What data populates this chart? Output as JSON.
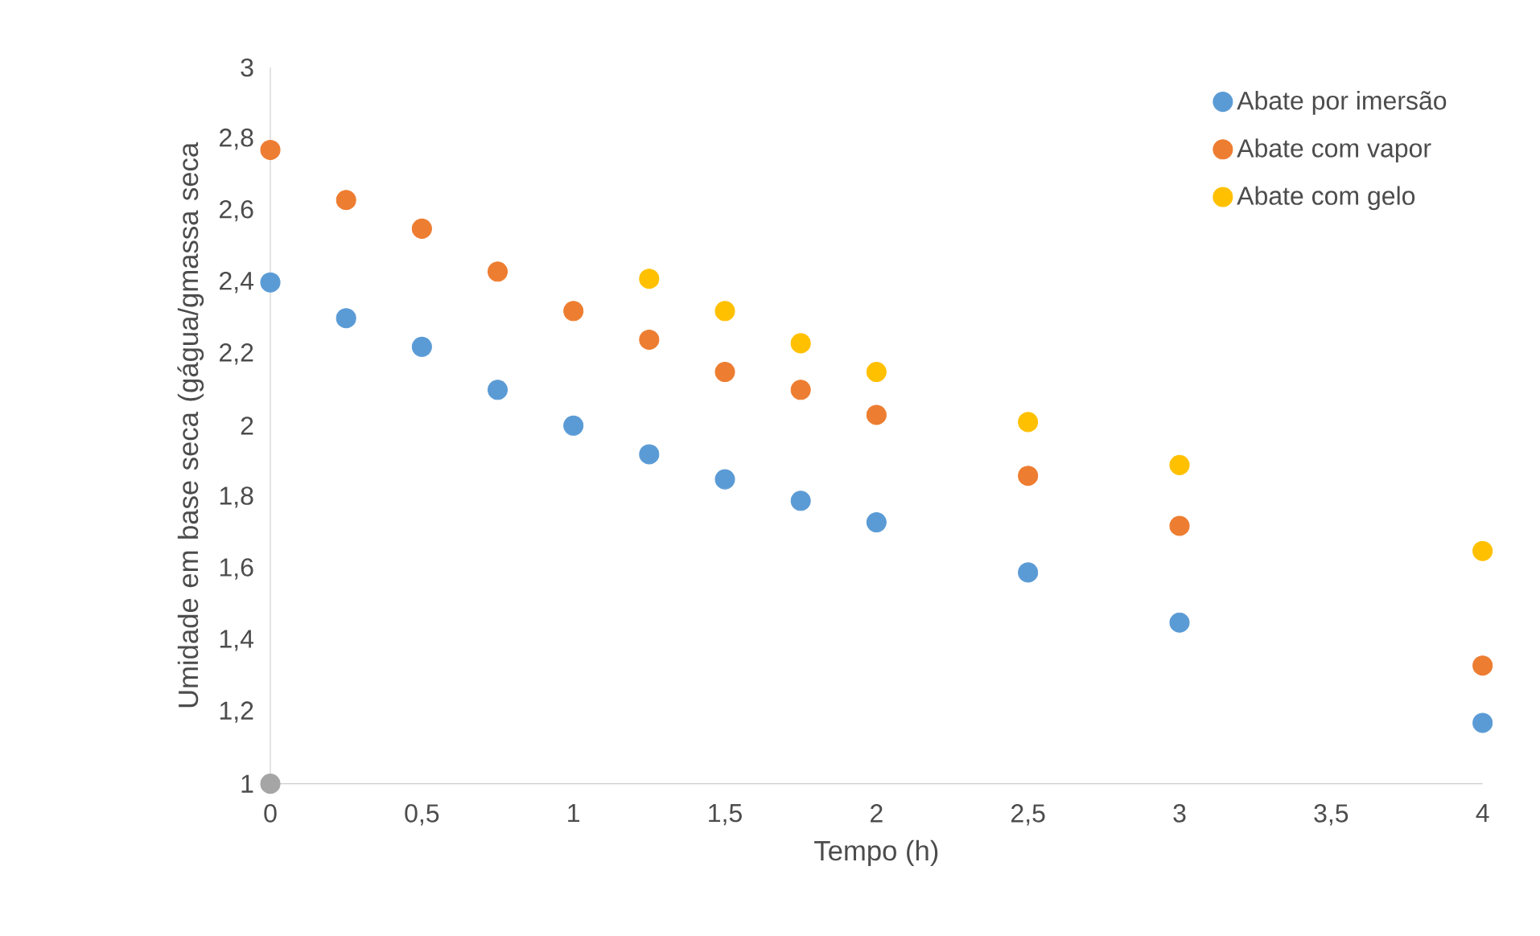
{
  "chart_data": {
    "type": "scatter",
    "xlabel": "Tempo (h)",
    "ylabel": "Umidade em base seca (gágua/gmassa seca",
    "x": [
      0,
      0.25,
      0.5,
      0.75,
      1,
      1.25,
      1.5,
      1.75,
      2,
      2.5,
      3,
      4
    ],
    "series": [
      {
        "name": "Abate por imersão",
        "color": "#5b9bd5",
        "values": [
          2.4,
          2.3,
          2.22,
          2.1,
          2.0,
          1.92,
          1.85,
          1.79,
          1.73,
          1.59,
          1.45,
          1.17
        ]
      },
      {
        "name": "Abate com vapor",
        "color": "#ed7d31",
        "values": [
          2.77,
          2.63,
          2.55,
          2.43,
          2.32,
          2.24,
          2.15,
          2.1,
          2.03,
          1.86,
          1.72,
          1.33
        ]
      },
      {
        "name": "Abate com gelo",
        "color": "#ffc000",
        "x": [
          1.25,
          1.5,
          1.75,
          2,
          2.5,
          3,
          4
        ],
        "values": [
          2.41,
          2.32,
          2.23,
          2.15,
          2.01,
          1.89,
          1.65
        ]
      },
      {
        "color": "#a5a5a5",
        "x": [
          0
        ],
        "values": [
          1
        ]
      }
    ],
    "xlim": [
      0,
      4
    ],
    "ylim": [
      1,
      3
    ],
    "xticks": [
      0,
      {
        "value": 0.5,
        "label": "0,5"
      },
      1,
      {
        "value": 1.5,
        "label": "1,5"
      },
      2,
      {
        "value": 2.5,
        "label": "2,5"
      },
      3,
      {
        "value": 3.5,
        "label": "3,5"
      },
      4
    ],
    "yticks": [
      1,
      {
        "value": 1.2,
        "label": "1,2"
      },
      {
        "value": 1.4,
        "label": "1,4"
      },
      {
        "value": 1.6,
        "label": "1,6"
      },
      {
        "value": 1.8,
        "label": "1,8"
      },
      2,
      {
        "value": 2.2,
        "label": "2,2"
      },
      {
        "value": 2.4,
        "label": "2,4"
      },
      {
        "value": 2.6,
        "label": "2,6"
      },
      {
        "value": 2.8,
        "label": "2,8"
      },
      3
    ],
    "legend": "top right"
  }
}
